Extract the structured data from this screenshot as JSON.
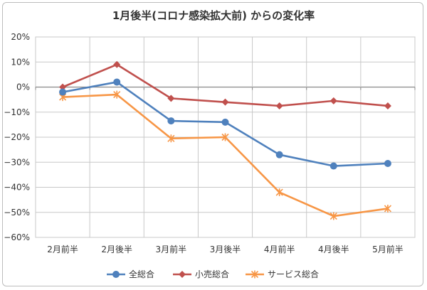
{
  "chart_data": {
    "type": "line",
    "title": "1月後半(コロナ感染拡大前) からの変化率",
    "categories": [
      "2月前半",
      "2月後半",
      "3月前半",
      "3月後半",
      "4月前半",
      "4月後半",
      "5月前半"
    ],
    "ylim": [
      -60,
      20
    ],
    "yticks": [
      20,
      10,
      0,
      -10,
      -20,
      -30,
      -40,
      -50,
      -60
    ],
    "ytick_labels": [
      "20%",
      "10%",
      "0%",
      "−10%",
      "−20%",
      "−30%",
      "−40%",
      "−50%",
      "−60%"
    ],
    "grid": true,
    "legend_position": "bottom",
    "series": [
      {
        "name": "全総合",
        "color": "#4F81BD",
        "marker": "circle",
        "values": [
          -2,
          2,
          -13.5,
          -14,
          -27,
          -31.5,
          -30.5
        ]
      },
      {
        "name": "小売総合",
        "color": "#C0504D",
        "marker": "diamond",
        "values": [
          0,
          9,
          -4.5,
          -6,
          -7.5,
          -5.5,
          -7.5
        ]
      },
      {
        "name": "サービス総合",
        "color": "#F79646",
        "marker": "asterisk",
        "values": [
          -4,
          -3,
          -20.5,
          -20,
          -42,
          -51.5,
          -48.5
        ]
      }
    ]
  }
}
